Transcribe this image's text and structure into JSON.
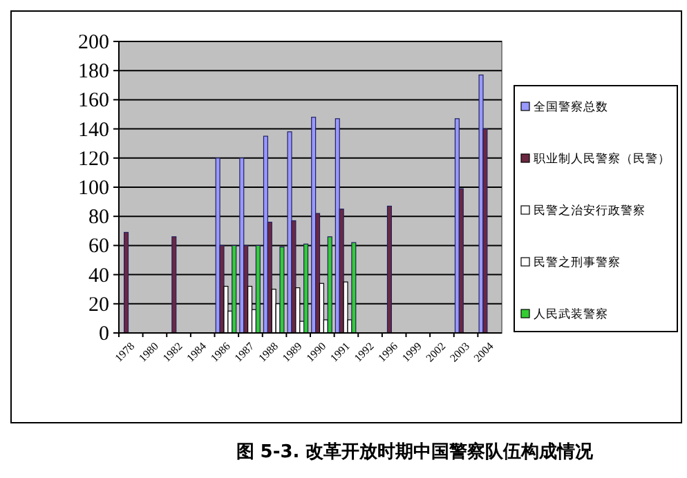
{
  "chart_data": {
    "type": "bar",
    "title": "图 5-3. 改革开放时期中国警察队伍构成情况",
    "categories": [
      "1978",
      "1980",
      "1982",
      "1984",
      "1986",
      "1987",
      "1988",
      "1989",
      "1990",
      "1991",
      "1992",
      "1996",
      "1999",
      "2002",
      "2003",
      "2004"
    ],
    "series": [
      {
        "name": "全国警察总数",
        "color": "#9999ff",
        "values": [
          null,
          null,
          null,
          null,
          120,
          120,
          135,
          138,
          148,
          147,
          null,
          null,
          null,
          null,
          147,
          177
        ]
      },
      {
        "name": "职业制人民警察（民警）",
        "color": "#6b2840",
        "values": [
          69,
          null,
          66,
          null,
          60,
          60,
          76,
          77,
          82,
          85,
          null,
          87,
          null,
          null,
          99,
          140
        ]
      },
      {
        "name": "民警之治安行政警察",
        "color": "#ffffff",
        "values": [
          null,
          null,
          null,
          null,
          32,
          32,
          30,
          31,
          34,
          35,
          null,
          null,
          null,
          null,
          null,
          null
        ]
      },
      {
        "name": "民警之刑事警察",
        "color": "#ffffff",
        "values": [
          null,
          null,
          null,
          null,
          15,
          16,
          20,
          8,
          9,
          9,
          null,
          null,
          null,
          null,
          null,
          null
        ]
      },
      {
        "name": "人民武装警察",
        "color": "#33cc33",
        "values": [
          null,
          null,
          null,
          null,
          60,
          60,
          59,
          61,
          66,
          62,
          null,
          null,
          null,
          null,
          null,
          null
        ]
      }
    ],
    "ylim": [
      0,
      200
    ],
    "yticks": [
      0,
      20,
      40,
      60,
      80,
      100,
      120,
      140,
      160,
      180,
      200
    ],
    "grid": "y",
    "legend": "right"
  }
}
